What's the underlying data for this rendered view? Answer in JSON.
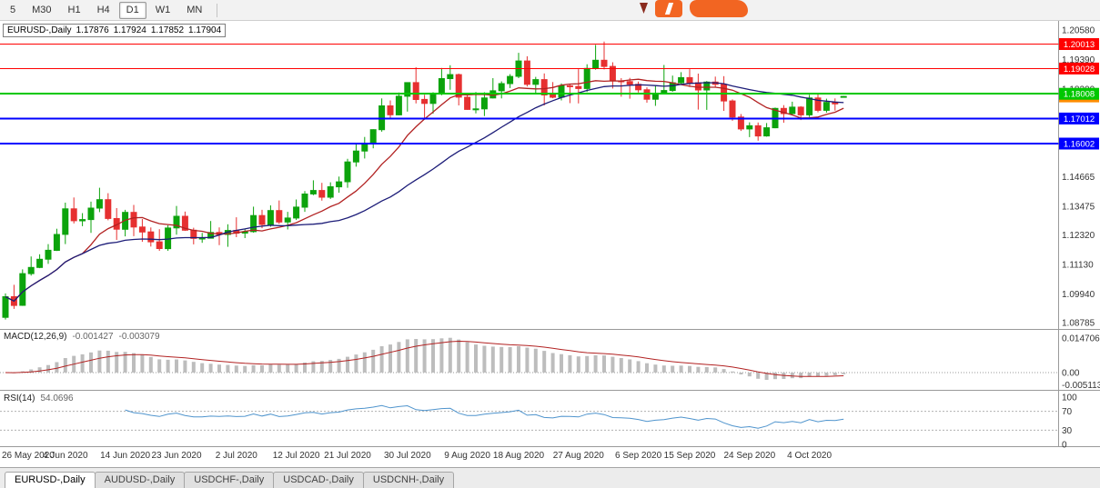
{
  "toolbar": {
    "timeframes": [
      "5",
      "M30",
      "H1",
      "H4",
      "D1",
      "W1",
      "MN"
    ],
    "active": "D1"
  },
  "quote": {
    "symbol": "EURUSD-,Daily",
    "open": "1.17876",
    "high": "1.17924",
    "low": "1.17852",
    "close": "1.17904"
  },
  "macd": {
    "label": "MACD(12,26,9)",
    "value_main": "-0.001427",
    "value_signal": "-0.003079",
    "axis": [
      "0.014706",
      "0.00",
      "-0.005113"
    ]
  },
  "rsi": {
    "label": "RSI(14)",
    "value": "54.0696",
    "axis": [
      "100",
      "70",
      "30",
      "0"
    ]
  },
  "tabs": [
    {
      "label": "EURUSD-,Daily",
      "active": true
    },
    {
      "label": "AUDUSD-,Daily",
      "active": false
    },
    {
      "label": "USDCHF-,Daily",
      "active": false
    },
    {
      "label": "USDCAD-,Daily",
      "active": false
    },
    {
      "label": "USDCNH-,Daily",
      "active": false
    }
  ],
  "colors": {
    "up": "#0ca30c",
    "down": "#e63030",
    "ma_fast": "#b22222",
    "ma_slow": "#1c1c78",
    "macd_hist": "#bdbdbd",
    "macd_signal": "#b22222",
    "rsi_line": "#4f94cd",
    "brand": "#f26522",
    "level_red": "#ff0000",
    "level_green": "#00c800",
    "level_blue": "#0000ff"
  },
  "chart_data": {
    "type": "candlestick",
    "symbol": "EURUSD-,Daily",
    "title": "EURUSD-,Daily 1.17876 1.17924 1.17852 1.17904",
    "y_ticks": [
      "1.20580",
      "1.19390",
      "1.18200",
      "1.14665",
      "1.13475",
      "1.12320",
      "1.11130",
      "1.09940",
      "1.08785"
    ],
    "ylim": [
      1.08785,
      1.2058
    ],
    "levels": [
      {
        "price": 1.20013,
        "label": "1.20013",
        "color": "#ff0000",
        "width": 1
      },
      {
        "price": 1.19028,
        "label": "1.19028",
        "color": "#ff0000",
        "width": 1
      },
      {
        "price": 1.18008,
        "label": "1.18008",
        "color": "#00c800",
        "width": 2
      },
      {
        "price": 1.17012,
        "label": "1.17012",
        "color": "#0000ff",
        "width": 2
      },
      {
        "price": 1.16002,
        "label": "1.16002",
        "color": "#0000ff",
        "width": 2
      }
    ],
    "current_price": {
      "price": 1.17904,
      "label": "1.17904",
      "color": "#ff8c00"
    },
    "moving_averages": [
      {
        "period": 10,
        "color": "#b22222"
      },
      {
        "period": 25,
        "color": "#1c1c78"
      }
    ],
    "indicators": {
      "macd": {
        "fast": 12,
        "slow": 26,
        "signal": 9,
        "last_main": -0.001427,
        "last_signal": -0.003079
      },
      "rsi": {
        "period": 14,
        "last": 54.0696,
        "levels": [
          70,
          30
        ]
      }
    },
    "x_labels": [
      {
        "text": "26 May 2020",
        "index": 0
      },
      {
        "text": "4 Jun 2020",
        "index": 7
      },
      {
        "text": "14 Jun 2020",
        "index": 14
      },
      {
        "text": "23 Jun 2020",
        "index": 20
      },
      {
        "text": "2 Jul 2020",
        "index": 27
      },
      {
        "text": "12 Jul 2020",
        "index": 34
      },
      {
        "text": "21 Jul 2020",
        "index": 40
      },
      {
        "text": "30 Jul 2020",
        "index": 47
      },
      {
        "text": "9 Aug 2020",
        "index": 54
      },
      {
        "text": "18 Aug 2020",
        "index": 60
      },
      {
        "text": "27 Aug 2020",
        "index": 67
      },
      {
        "text": "6 Sep 2020",
        "index": 74
      },
      {
        "text": "15 Sep 2020",
        "index": 80
      },
      {
        "text": "24 Sep 2020",
        "index": 87
      },
      {
        "text": "4 Oct 2020",
        "index": 94
      }
    ],
    "ohlc": [
      [
        1.09,
        1.0996,
        1.0891,
        1.0983
      ],
      [
        1.0983,
        1.1031,
        1.0934,
        1.0948
      ],
      [
        1.0948,
        1.1093,
        1.0946,
        1.1076
      ],
      [
        1.1076,
        1.1145,
        1.1068,
        1.1101
      ],
      [
        1.1101,
        1.1154,
        1.1098,
        1.1134
      ],
      [
        1.1134,
        1.1195,
        1.1115,
        1.117
      ],
      [
        1.117,
        1.1257,
        1.1167,
        1.1234
      ],
      [
        1.1234,
        1.1362,
        1.1195,
        1.1337
      ],
      [
        1.1337,
        1.1383,
        1.1278,
        1.1289
      ],
      [
        1.1289,
        1.132,
        1.1267,
        1.1294
      ],
      [
        1.1294,
        1.1366,
        1.124,
        1.134
      ],
      [
        1.134,
        1.1422,
        1.1324,
        1.1374
      ],
      [
        1.1374,
        1.14,
        1.1291,
        1.1298
      ],
      [
        1.1298,
        1.134,
        1.1212,
        1.1255
      ],
      [
        1.1255,
        1.1333,
        1.1226,
        1.1323
      ],
      [
        1.1323,
        1.1353,
        1.1227,
        1.1264
      ],
      [
        1.1264,
        1.1296,
        1.1204,
        1.1244
      ],
      [
        1.1244,
        1.1262,
        1.1185,
        1.1204
      ],
      [
        1.1204,
        1.1255,
        1.1168,
        1.1177
      ],
      [
        1.1177,
        1.1271,
        1.1168,
        1.126
      ],
      [
        1.126,
        1.1349,
        1.1233,
        1.1307
      ],
      [
        1.1307,
        1.1326,
        1.1248,
        1.1251
      ],
      [
        1.1251,
        1.1261,
        1.1194,
        1.1218
      ],
      [
        1.1218,
        1.124,
        1.12,
        1.1219
      ],
      [
        1.1219,
        1.1288,
        1.1218,
        1.1242
      ],
      [
        1.1242,
        1.1262,
        1.1191,
        1.1234
      ],
      [
        1.1234,
        1.1275,
        1.1184,
        1.125
      ],
      [
        1.125,
        1.1303,
        1.1223,
        1.1239
      ],
      [
        1.1239,
        1.1254,
        1.1219,
        1.1245
      ],
      [
        1.1245,
        1.1346,
        1.1241,
        1.131
      ],
      [
        1.131,
        1.1333,
        1.1259,
        1.1274
      ],
      [
        1.1274,
        1.1351,
        1.1265,
        1.133
      ],
      [
        1.133,
        1.1371,
        1.1276,
        1.1284
      ],
      [
        1.1284,
        1.1325,
        1.1254,
        1.13
      ],
      [
        1.13,
        1.1375,
        1.1292,
        1.1344
      ],
      [
        1.1344,
        1.1409,
        1.1325,
        1.1397
      ],
      [
        1.1397,
        1.1452,
        1.1392,
        1.1411
      ],
      [
        1.1411,
        1.1442,
        1.137,
        1.1384
      ],
      [
        1.1384,
        1.1444,
        1.1377,
        1.1426
      ],
      [
        1.1426,
        1.1467,
        1.1402,
        1.1446
      ],
      [
        1.1446,
        1.1539,
        1.1422,
        1.1526
      ],
      [
        1.1526,
        1.1601,
        1.1507,
        1.157
      ],
      [
        1.157,
        1.1627,
        1.154,
        1.1598
      ],
      [
        1.1598,
        1.1658,
        1.1581,
        1.1656
      ],
      [
        1.1656,
        1.1782,
        1.1648,
        1.1752
      ],
      [
        1.1752,
        1.1774,
        1.17,
        1.1716
      ],
      [
        1.1716,
        1.1806,
        1.1714,
        1.1791
      ],
      [
        1.1791,
        1.1847,
        1.1729,
        1.1846
      ],
      [
        1.1846,
        1.1908,
        1.1762,
        1.1778
      ],
      [
        1.1778,
        1.1797,
        1.1696,
        1.1762
      ],
      [
        1.1762,
        1.1807,
        1.1721,
        1.1803
      ],
      [
        1.1803,
        1.1905,
        1.1795,
        1.1862
      ],
      [
        1.1862,
        1.1916,
        1.1817,
        1.1878
      ],
      [
        1.1878,
        1.1882,
        1.1754,
        1.1787
      ],
      [
        1.1787,
        1.1803,
        1.1736,
        1.1738
      ],
      [
        1.1738,
        1.1808,
        1.1722,
        1.174
      ],
      [
        1.174,
        1.1807,
        1.1711,
        1.1784
      ],
      [
        1.1784,
        1.1864,
        1.1782,
        1.1813
      ],
      [
        1.1813,
        1.1851,
        1.1782,
        1.1842
      ],
      [
        1.1842,
        1.188,
        1.1824,
        1.1871
      ],
      [
        1.1871,
        1.1966,
        1.1864,
        1.1933
      ],
      [
        1.1933,
        1.1952,
        1.183,
        1.1839
      ],
      [
        1.1839,
        1.1869,
        1.18,
        1.1858
      ],
      [
        1.1858,
        1.1883,
        1.1754,
        1.1796
      ],
      [
        1.1796,
        1.1848,
        1.1783,
        1.1787
      ],
      [
        1.1787,
        1.1843,
        1.1774,
        1.1833
      ],
      [
        1.1833,
        1.1838,
        1.1763,
        1.183
      ],
      [
        1.183,
        1.19,
        1.1762,
        1.1822
      ],
      [
        1.1822,
        1.192,
        1.1808,
        1.1903
      ],
      [
        1.1903,
        1.1998,
        1.1898,
        1.1936
      ],
      [
        1.1936,
        1.2011,
        1.1899,
        1.1911
      ],
      [
        1.1911,
        1.1928,
        1.1822,
        1.1853
      ],
      [
        1.1853,
        1.1864,
        1.1789,
        1.185
      ],
      [
        1.185,
        1.1865,
        1.1781,
        1.1839
      ],
      [
        1.1839,
        1.185,
        1.1806,
        1.1817
      ],
      [
        1.1817,
        1.1827,
        1.1765,
        1.1779
      ],
      [
        1.1779,
        1.1834,
        1.1752,
        1.1803
      ],
      [
        1.1803,
        1.1917,
        1.1799,
        1.1814
      ],
      [
        1.1814,
        1.1874,
        1.1809,
        1.1845
      ],
      [
        1.1845,
        1.1888,
        1.1839,
        1.1866
      ],
      [
        1.1866,
        1.19,
        1.1828,
        1.1845
      ],
      [
        1.1845,
        1.1882,
        1.1737,
        1.1816
      ],
      [
        1.1816,
        1.1852,
        1.1736,
        1.1848
      ],
      [
        1.1848,
        1.187,
        1.1827,
        1.1839
      ],
      [
        1.1839,
        1.1872,
        1.1732,
        1.1772
      ],
      [
        1.1772,
        1.1778,
        1.1692,
        1.1707
      ],
      [
        1.1707,
        1.1719,
        1.1651,
        1.1659
      ],
      [
        1.1659,
        1.1686,
        1.1626,
        1.1672
      ],
      [
        1.1672,
        1.1685,
        1.1612,
        1.1631
      ],
      [
        1.1631,
        1.1683,
        1.1628,
        1.1664
      ],
      [
        1.1664,
        1.1745,
        1.1662,
        1.1742
      ],
      [
        1.1742,
        1.1755,
        1.1684,
        1.1721
      ],
      [
        1.1721,
        1.1769,
        1.1717,
        1.1747
      ],
      [
        1.1747,
        1.1751,
        1.1695,
        1.1716
      ],
      [
        1.1716,
        1.1797,
        1.1707,
        1.1784
      ],
      [
        1.1784,
        1.1798,
        1.1726,
        1.1734
      ],
      [
        1.1734,
        1.1781,
        1.1725,
        1.1766
      ],
      [
        1.1766,
        1.1782,
        1.1733,
        1.176
      ],
      [
        1.17876,
        1.17924,
        1.17852,
        1.17904
      ]
    ]
  }
}
